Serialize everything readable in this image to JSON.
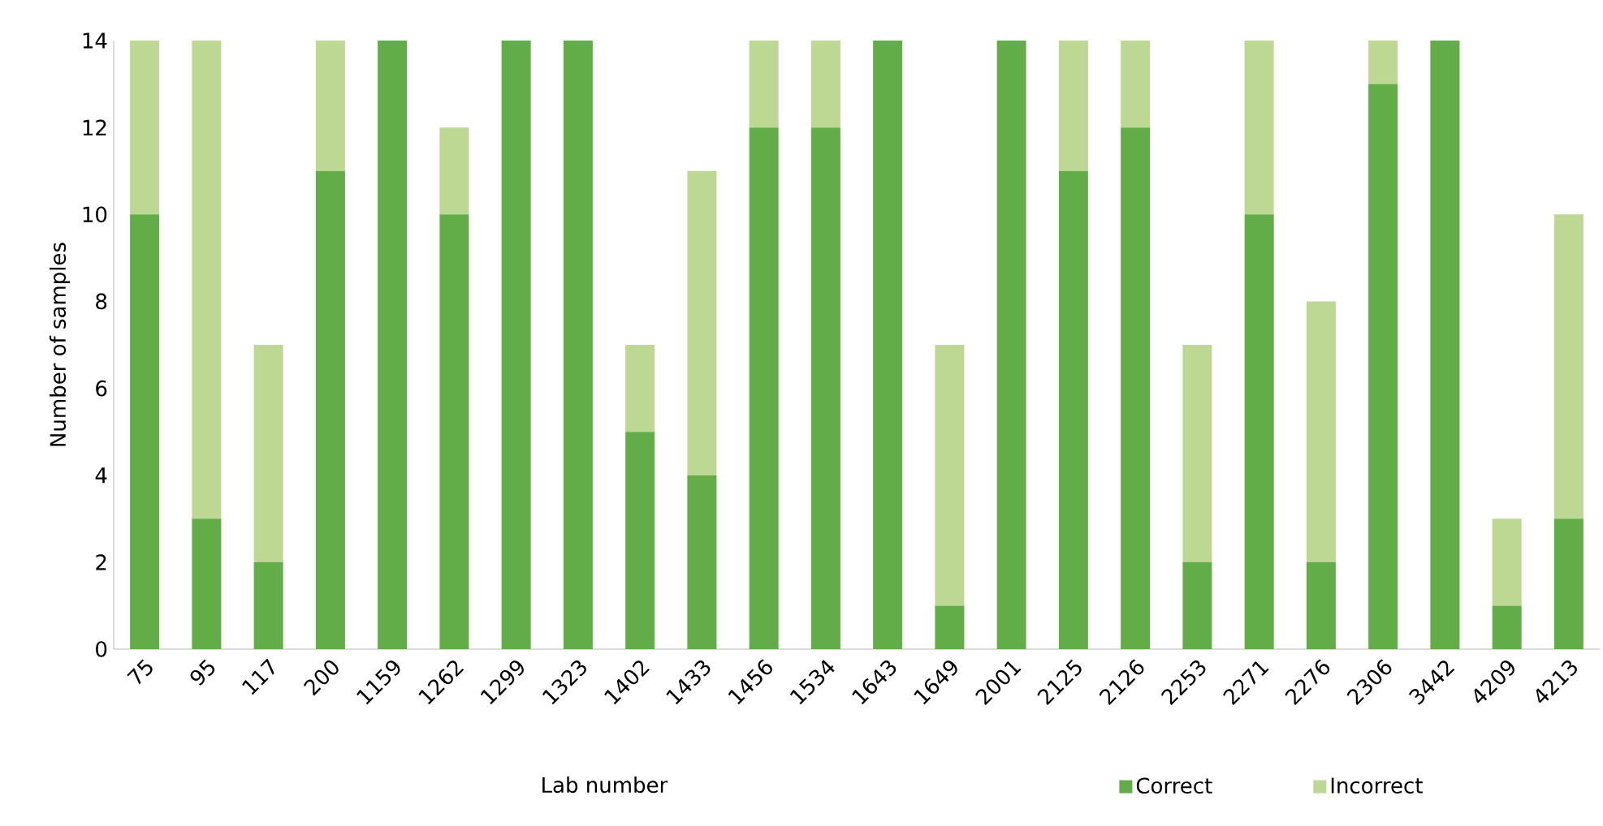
{
  "chart_data": {
    "type": "bar",
    "stacked": true,
    "xlabel": "Lab number",
    "ylabel": "Number of samples",
    "categories": [
      "75",
      "95",
      "117",
      "200",
      "1159",
      "1262",
      "1299",
      "1323",
      "1402",
      "1433",
      "1456",
      "1534",
      "1643",
      "1649",
      "2001",
      "2125",
      "2126",
      "2253",
      "2271",
      "2276",
      "2306",
      "3442",
      "4209",
      "4213"
    ],
    "series": [
      {
        "name": "Correct",
        "color": "#62ad47",
        "values": [
          10,
          3,
          2,
          11,
          14,
          10,
          14,
          14,
          5,
          4,
          12,
          12,
          14,
          1,
          14,
          11,
          12,
          2,
          10,
          2,
          13,
          14,
          1,
          3
        ]
      },
      {
        "name": "Incorrect",
        "color": "#bdd893",
        "values": [
          4,
          11,
          5,
          3,
          0,
          2,
          0,
          0,
          2,
          7,
          2,
          2,
          0,
          6,
          0,
          3,
          2,
          5,
          4,
          6,
          1,
          0,
          2,
          7
        ]
      }
    ],
    "ylim": [
      0,
      14
    ],
    "yticks": [
      0,
      2,
      4,
      6,
      8,
      10,
      12,
      14
    ],
    "legend": "bottom"
  }
}
